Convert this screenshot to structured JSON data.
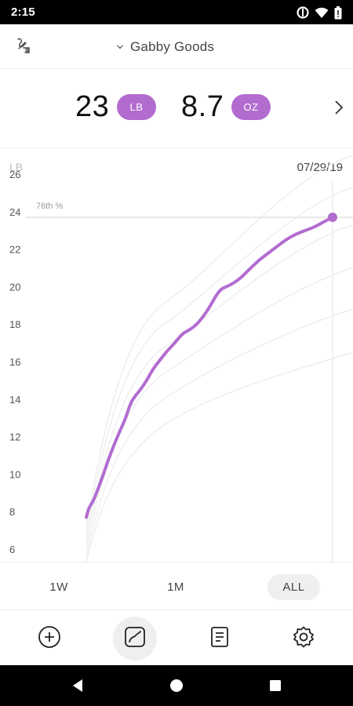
{
  "status_bar": {
    "time": "2:15",
    "icons": [
      "data-saver-icon",
      "wifi-icon",
      "battery-icon"
    ]
  },
  "header": {
    "tool_icon": "scale-tool-icon",
    "profile_name": "Gabby Goods",
    "dropdown_icon": "chevron-down-icon"
  },
  "weight": {
    "pounds": "23",
    "pounds_unit": "LB",
    "ounces": "8.7",
    "ounces_unit": "OZ",
    "next_icon": "chevron-right-icon"
  },
  "accent_color": "#b26cd0",
  "chart_data": {
    "type": "line",
    "ylabel": "LB",
    "date_label": "07/29/19",
    "percentile_label": "76th %",
    "percentile_value": 23.7,
    "ylim": [
      5.5,
      26
    ],
    "yticks": [
      26,
      24,
      22,
      20,
      18,
      16,
      14,
      12,
      10,
      8,
      6
    ],
    "grid": false,
    "x_range": [
      0,
      1
    ],
    "series": [
      {
        "color": "#b26cd0",
        "x": [
          0,
          0.01,
          0.03,
          0.05,
          0.07,
          0.09,
          0.12,
          0.14,
          0.16,
          0.18,
          0.2,
          0.22,
          0.25,
          0.27,
          0.3,
          0.33,
          0.36,
          0.39,
          0.42,
          0.45,
          0.48,
          0.5,
          0.53,
          0.55,
          0.57,
          0.6,
          0.63,
          0.66,
          0.7,
          0.73,
          0.77,
          0.81,
          0.85,
          0.89,
          0.93,
          0.97,
          1.0
        ],
        "values": [
          7.7,
          8.2,
          8.6,
          9.3,
          10.0,
          10.8,
          11.8,
          12.4,
          13.0,
          13.8,
          14.2,
          14.5,
          15.1,
          15.6,
          16.1,
          16.6,
          17.0,
          17.5,
          17.7,
          18.0,
          18.5,
          18.9,
          19.6,
          19.9,
          20.0,
          20.2,
          20.5,
          20.9,
          21.4,
          21.7,
          22.1,
          22.5,
          22.8,
          23.0,
          23.2,
          23.5,
          23.7
        ]
      }
    ],
    "reference_curves": [
      {
        "values_at_start": [
          5.3,
          6.4
        ],
        "values_at_end": [
          16.5,
          17.6
        ]
      },
      {
        "values_at_start": [
          5.6,
          6.9
        ],
        "values_at_end": [
          18.8,
          20.2
        ]
      },
      {
        "values_at_start": [
          6.0,
          7.4
        ],
        "values_at_end": [
          21.0,
          22.6
        ]
      },
      {
        "values_at_start": [
          6.4,
          7.9
        ],
        "values_at_end": [
          23.3,
          24.8
        ]
      },
      {
        "values_at_start": [
          6.8,
          8.4
        ],
        "values_at_end": [
          25.3,
          26.8
        ]
      },
      {
        "values_at_start": [
          7.2,
          8.9
        ],
        "values_at_end": [
          27.0,
          28.5
        ]
      }
    ]
  },
  "range_tabs": [
    {
      "label": "1W",
      "active": false
    },
    {
      "label": "1M",
      "active": false
    },
    {
      "label": "ALL",
      "active": true
    }
  ],
  "bottom_nav": [
    {
      "icon": "add-entry-icon",
      "active": false
    },
    {
      "icon": "growth-chart-icon",
      "active": true
    },
    {
      "icon": "log-list-icon",
      "active": false
    },
    {
      "icon": "settings-gear-icon",
      "active": false
    }
  ],
  "android_nav": [
    "back-icon",
    "home-icon",
    "recents-icon"
  ]
}
